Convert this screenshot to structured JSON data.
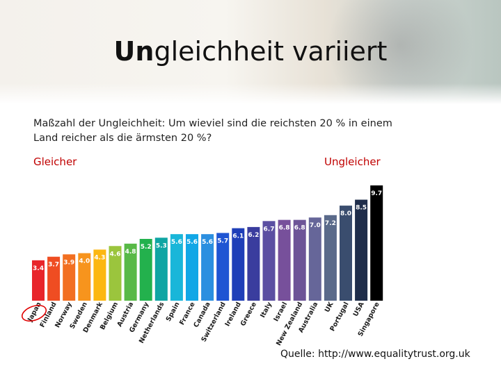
{
  "slide": {
    "title_bold": "Un",
    "title_rest": "gleichheit variiert",
    "subtitle": "Maßzahl der Ungleichheit: Um wieviel sind die reichsten 20 % in einem Land reicher als die ärmsten 20 %?",
    "label_left": "Gleicher",
    "label_right": "Ungleicher",
    "source": "Quelle: http://www.equalitytrust.org.uk"
  },
  "chart_data": {
    "type": "bar",
    "title": "",
    "xlabel": "",
    "ylabel": "",
    "ylim": [
      0,
      9.7
    ],
    "grid": false,
    "legend": false,
    "categories": [
      "Japan",
      "Finland",
      "Norway",
      "Sweden",
      "Denmark",
      "Belgium",
      "Austria",
      "Germany",
      "Netherlands",
      "Spain",
      "France",
      "Canada",
      "Switzerland",
      "Ireland",
      "Greece",
      "Italy",
      "Israel",
      "New Zealand",
      "Australia",
      "UK",
      "Portugal",
      "USA",
      "Singapore"
    ],
    "values": [
      3.4,
      3.7,
      3.9,
      4.0,
      4.3,
      4.6,
      4.8,
      5.2,
      5.3,
      5.6,
      5.6,
      5.6,
      5.7,
      6.1,
      6.2,
      6.7,
      6.8,
      6.8,
      7.0,
      7.2,
      8.0,
      8.5,
      9.7
    ],
    "colors": [
      "#e8252b",
      "#ef4d22",
      "#f26f21",
      "#f7941d",
      "#fcb711",
      "#9bc53d",
      "#58b947",
      "#23b14d",
      "#0fa5a3",
      "#19b6d9",
      "#11a7e6",
      "#2b8fe0",
      "#1f55d3",
      "#1f3fb8",
      "#3a3d9e",
      "#5b4fa2",
      "#77509b",
      "#6d5497",
      "#666699",
      "#5a6a8a",
      "#3a4d6e",
      "#1f2d4a",
      "#000000"
    ],
    "data_labels": [
      "3.4",
      "3.7",
      "3.9",
      "4.0",
      "4.3",
      "4.6",
      "4.8",
      "5.2",
      "5.3",
      "5.6",
      "5.6",
      "5.6",
      "5.7",
      "6.1",
      "6.2",
      "6.7",
      "6.8",
      "6.8",
      "7.0",
      "7.2",
      "8.0",
      "8.5",
      "9.7"
    ],
    "highlight": "Japan"
  }
}
